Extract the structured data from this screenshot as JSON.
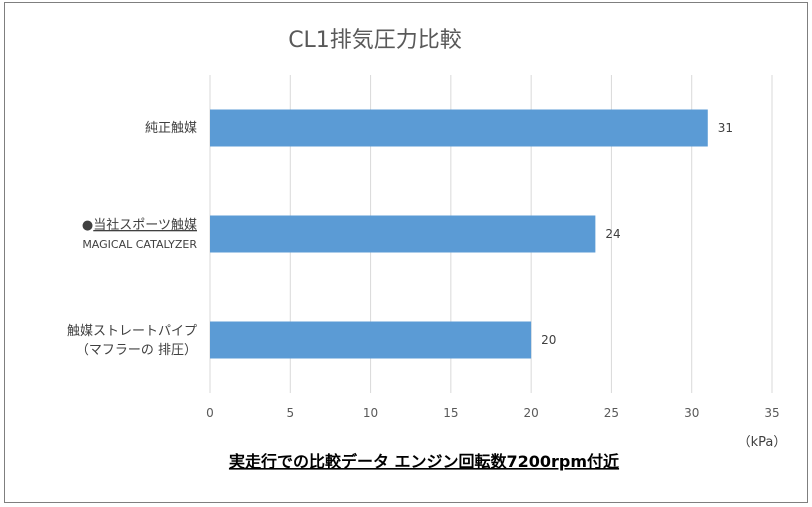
{
  "chart_data": {
    "type": "bar",
    "orientation": "horizontal",
    "title": "CL1排気圧力比較",
    "categories": [
      {
        "label": "純正触媒",
        "sub": "",
        "bullet": "",
        "underline": false
      },
      {
        "label": "当社スポーツ触媒",
        "sub": "MAGICAL CATALYZER",
        "bullet": "●",
        "underline": true
      },
      {
        "label": "触媒ストレートパイプ",
        "sub": "（マフラーの 排圧）",
        "bullet": "",
        "underline": false
      }
    ],
    "values": [
      31,
      24,
      20
    ],
    "xlim": [
      0,
      35
    ],
    "xticks": [
      0,
      5,
      10,
      15,
      20,
      25,
      30,
      35
    ],
    "unit": "（kPa）",
    "caption": "実走行での比較データ  エンジン回転数7200rpm付近",
    "grid": "vertical",
    "bar_color": "#5b9bd5",
    "grid_color": "#d9d9d9"
  }
}
